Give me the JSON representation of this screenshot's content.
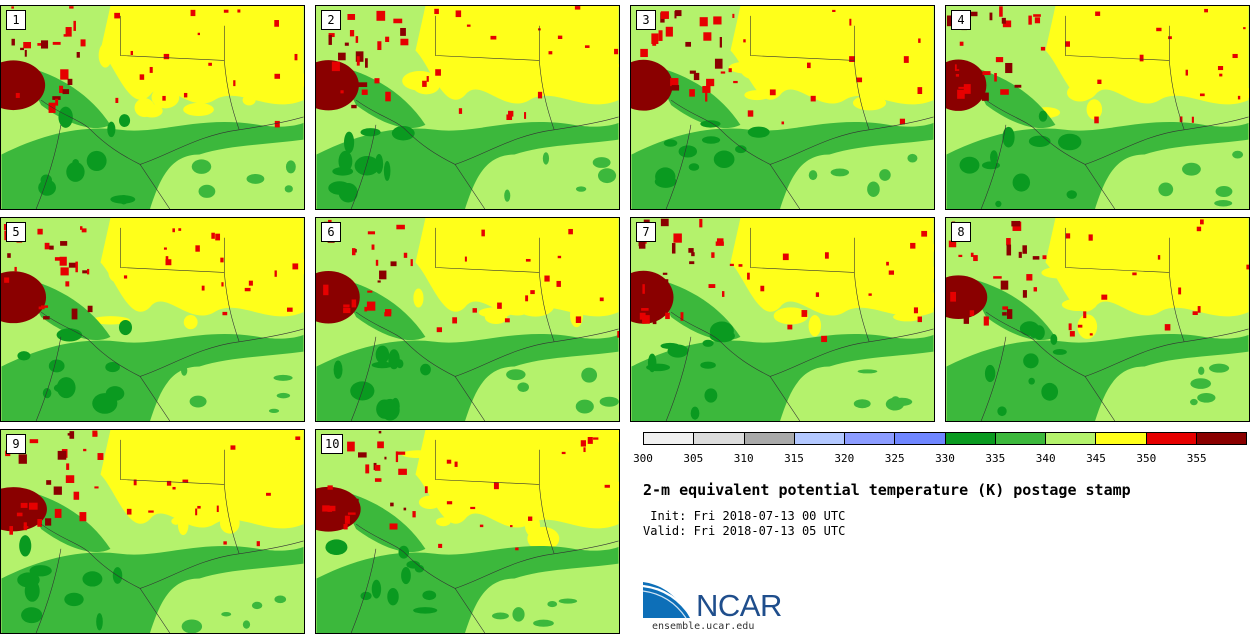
{
  "panels": [
    {
      "label": "1"
    },
    {
      "label": "2"
    },
    {
      "label": "3"
    },
    {
      "label": "4"
    },
    {
      "label": "5"
    },
    {
      "label": "6"
    },
    {
      "label": "7"
    },
    {
      "label": "8"
    },
    {
      "label": "9"
    },
    {
      "label": "10"
    }
  ],
  "colorbar": {
    "ticks": [
      "300",
      "305",
      "310",
      "315",
      "320",
      "325",
      "330",
      "335",
      "340",
      "345",
      "350",
      "355"
    ],
    "colors": [
      "#f0f0f0",
      "#dcdcdc",
      "#a9a9a9",
      "#b3c8ff",
      "#8c9cff",
      "#6f86ff",
      "#0a9a20",
      "#3cb83c",
      "#b4f26c",
      "#ffff1a",
      "#e60000",
      "#8a0000"
    ]
  },
  "title": "2-m equivalent potential temperature (K) postage stamp",
  "init_label": " Init: Fri 2018-07-13 00 UTC",
  "valid_label": "Valid: Fri 2018-07-13 05 UTC",
  "logo_text": "NCAR",
  "url": "ensemble.ucar.edu"
}
